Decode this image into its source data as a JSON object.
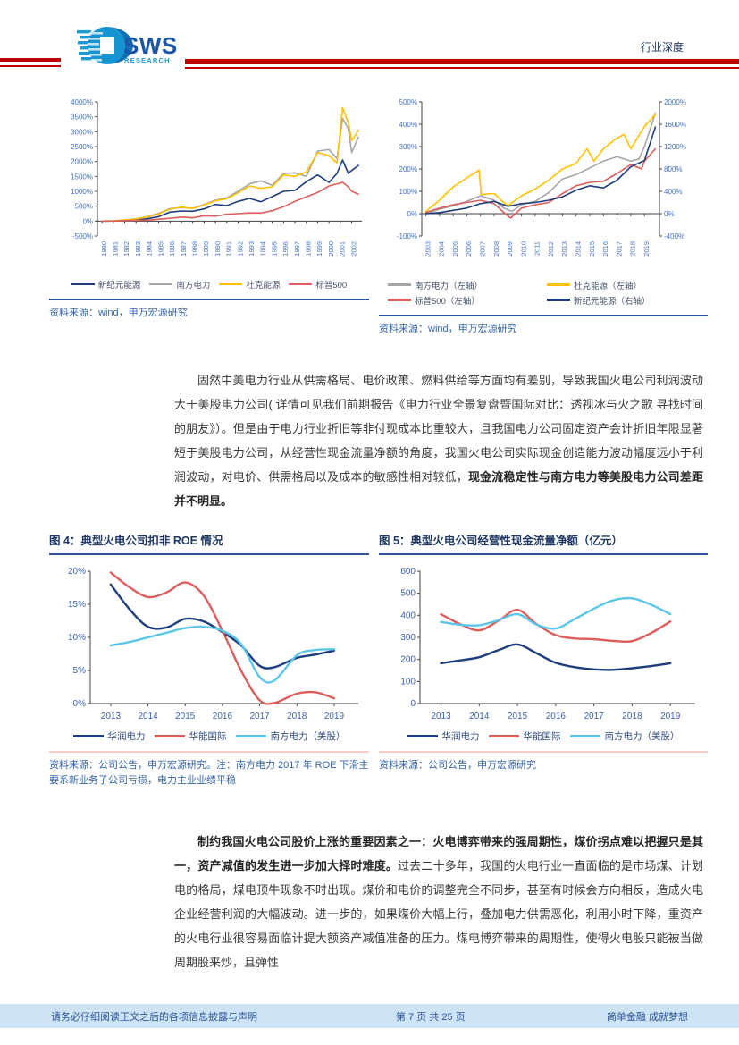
{
  "header": {
    "brand": "SWS",
    "brand_sub": "RESEARCH",
    "doc_type": "行业深度"
  },
  "paragraphs": {
    "p1": {
      "segments": [
        {
          "text": "固然中美电力行业从供需格局、电价政策、燃料供给等方面均有差别，导致我国火电公司利润波动大于美股电力公司( 详情可见我们前期报告《电力行业全景复盘暨国际对比：透视冰与火之歌 寻找时间的朋友》）。但是由于电力行业折旧等非付现成本比重较大，且我国电力公司固定资产会计折旧年限显著短于美股电力公司，从经营性现金流量净额的角度，我国火电公司实际现金创造能力波动幅度远小于利润波动，对电价、供需格局以及成本的敏感性相对较低，",
          "bold": false
        },
        {
          "text": "现金流稳定性与南方电力等美股电力公司差距并不明显。",
          "bold": true
        }
      ]
    },
    "p2": {
      "segments": [
        {
          "text": "制约我国火电公司股价上涨的重要因素之一：火电博弈带来的强周期性，煤价拐点难以把握只是其一，资产减值的发生进一步加大择时难度。",
          "bold": true
        },
        {
          "text": "过去二十多年，我国的火电行业一直面临的是市场煤、计划电的格局，煤电顶牛现象不时出现。煤价和电价的调整完全不同步，甚至有时候会方向相反，造成火电企业经营利润的大幅波动。进一步的，如果煤价大幅上行，叠加电力供需恶化，利用小时下降，重资产的火电行业很容易面临计提大额资产减值准备的压力。煤电博弈带来的周期性，使得火电股只能被当做周期股来炒，且弹性",
          "bold": false
        }
      ]
    }
  },
  "footer": {
    "disclaimer": "请务必仔细阅读正文之后的各项信息披露与声明",
    "page_info": "第 7 页 共 25 页",
    "slogan": "简单金融 成就梦想"
  },
  "colors": {
    "navy": "#1F3D7C",
    "gray": "#A5A5A5",
    "gold": "#FFC000",
    "red": "#DC5E5C",
    "cyan": "#5BC6E8",
    "accent_red": "#C00000",
    "title_blue": "#1F3864",
    "source_blue": "#3465A8",
    "footer_bg": "#CDE4F7"
  },
  "chart_data": [
    {
      "id": "us-power-return-1980-2002",
      "type": "line",
      "title": "",
      "source": "资料来源：wind，申万宏源研究",
      "tick_color": "#4472C4",
      "x_range": [
        1979.6,
        2002.9
      ],
      "x_axis_at": 0,
      "x_ticks": [
        1980,
        1981,
        1982,
        1983,
        1984,
        1985,
        1986,
        1987,
        1988,
        1989,
        1990,
        1991,
        1992,
        1993,
        1994,
        1995,
        1996,
        1997,
        1998,
        1999,
        2000,
        2001,
        2002
      ],
      "y_left": {
        "range": [
          -500,
          4000
        ],
        "ticks": [
          {
            "v": 4000,
            "label": "4000%"
          },
          {
            "v": 3500,
            "label": "3500%"
          },
          {
            "v": 3000,
            "label": "3000%"
          },
          {
            "v": 2500,
            "label": "2500%"
          },
          {
            "v": 2000,
            "label": "2000%"
          },
          {
            "v": 1500,
            "label": "1500%"
          },
          {
            "v": 1000,
            "label": "1000%"
          },
          {
            "v": 500,
            "label": "500%"
          },
          {
            "v": 0,
            "label": "0%"
          },
          {
            "v": -500,
            "label": "-500%"
          }
        ]
      },
      "series": [
        {
          "name": "新纪元能源",
          "color": "#1F3D7C",
          "axis": "left",
          "x": [
            1980,
            1981,
            1982,
            1983,
            1984,
            1985,
            1986,
            1987,
            1988,
            1989,
            1990,
            1991,
            1992,
            1993,
            1994,
            1995,
            1996,
            1997,
            1998,
            1999,
            2000,
            2000.7,
            2001.2,
            2001.7,
            2002,
            2002.6
          ],
          "y": [
            0,
            5,
            20,
            40,
            80,
            150,
            300,
            340,
            330,
            410,
            560,
            520,
            660,
            760,
            650,
            820,
            1000,
            1030,
            1320,
            1550,
            1300,
            1600,
            2050,
            1600,
            1700,
            1870
          ]
        },
        {
          "name": "南方电力",
          "color": "#A5A5A5",
          "axis": "left",
          "x": [
            1980,
            1981,
            1982,
            1983,
            1984,
            1985,
            1986,
            1987,
            1988,
            1989,
            1990,
            1991,
            1992,
            1993,
            1994,
            1995,
            1996,
            1997,
            1998,
            1999,
            2000,
            2000.7,
            2001.2,
            2001.7,
            2002,
            2002.6
          ],
          "y": [
            0,
            10,
            40,
            80,
            150,
            260,
            420,
            450,
            430,
            560,
            700,
            780,
            1000,
            1250,
            1350,
            1200,
            1600,
            1620,
            1500,
            2350,
            2400,
            2100,
            3450,
            3100,
            2300,
            2820
          ]
        },
        {
          "name": "杜克能源",
          "color": "#FFC000",
          "axis": "left",
          "x": [
            1980,
            1981,
            1982,
            1983,
            1984,
            1985,
            1986,
            1987,
            1988,
            1989,
            1990,
            1991,
            1992,
            1993,
            1994,
            1995,
            1996,
            1997,
            1998,
            1999,
            2000,
            2000.7,
            2001.2,
            2001.7,
            2002,
            2002.6
          ],
          "y": [
            0,
            8,
            35,
            70,
            140,
            240,
            400,
            470,
            420,
            540,
            680,
            750,
            950,
            1180,
            1100,
            1150,
            1550,
            1500,
            1650,
            2300,
            2200,
            1950,
            3800,
            3300,
            2700,
            3050
          ]
        },
        {
          "name": "标普500",
          "color": "#DC5E5C",
          "axis": "left",
          "x": [
            1980,
            1981,
            1982,
            1983,
            1984,
            1985,
            1986,
            1987,
            1988,
            1989,
            1990,
            1991,
            1992,
            1993,
            1994,
            1995,
            1996,
            1997,
            1998,
            1999,
            2000,
            2000.7,
            2001.2,
            2001.7,
            2002,
            2002.6
          ],
          "y": [
            0,
            0,
            15,
            25,
            30,
            65,
            95,
            135,
            110,
            180,
            170,
            230,
            250,
            275,
            270,
            350,
            480,
            660,
            810,
            960,
            1180,
            1250,
            1300,
            1150,
            1000,
            900
          ]
        }
      ]
    },
    {
      "id": "us-power-return-2003-2019",
      "type": "line",
      "title": "",
      "source": "资料来源：wind，申万宏源研究",
      "tick_color": "#4472C4",
      "x_range": [
        2002.7,
        2020.1
      ],
      "x_axis_at": 0,
      "x_ticks": [
        2003,
        2004,
        2005,
        2006,
        2007,
        2008,
        2009,
        2010,
        2011,
        2012,
        2013,
        2014,
        2015,
        2016,
        2017,
        2018,
        2019
      ],
      "y_left": {
        "range": [
          -100,
          500
        ],
        "ticks": [
          {
            "v": 500,
            "label": "500%"
          },
          {
            "v": 400,
            "label": "400%"
          },
          {
            "v": 300,
            "label": "300%"
          },
          {
            "v": 200,
            "label": "200%"
          },
          {
            "v": 100,
            "label": "100%"
          },
          {
            "v": 0,
            "label": "0%"
          },
          {
            "v": -100,
            "label": "-100%"
          }
        ]
      },
      "y_right": {
        "range": [
          -400,
          2000
        ],
        "ticks": [
          {
            "v": 2000,
            "label": "2000%"
          },
          {
            "v": 1600,
            "label": "1600%"
          },
          {
            "v": 1200,
            "label": "1200%"
          },
          {
            "v": 800,
            "label": "800%"
          },
          {
            "v": 400,
            "label": "400%"
          },
          {
            "v": 0,
            "label": "0%"
          },
          {
            "v": -400,
            "label": "-400%"
          }
        ]
      },
      "series": [
        {
          "name": "南方电力（左轴）",
          "color": "#A5A5A5",
          "axis": "left",
          "x": [
            2003,
            2004,
            2005,
            2006,
            2007,
            2008,
            2008.7,
            2009.3,
            2010,
            2011,
            2012,
            2013,
            2014,
            2015,
            2016,
            2017,
            2018,
            2018.6,
            2019,
            2019.8
          ],
          "y": [
            0,
            20,
            35,
            55,
            80,
            60,
            25,
            10,
            40,
            55,
            95,
            155,
            175,
            205,
            235,
            255,
            235,
            245,
            300,
            450
          ]
        },
        {
          "name": "杜克能源（左轴）",
          "color": "#FFC000",
          "axis": "left",
          "x": [
            2003,
            2004,
            2005,
            2006,
            2006.9,
            2007.05,
            2007.5,
            2008,
            2008.6,
            2009,
            2010,
            2011,
            2012,
            2013,
            2014,
            2014.8,
            2015.3,
            2016,
            2016.8,
            2017.5,
            2018,
            2018.4,
            2019,
            2019.8
          ],
          "y": [
            10,
            60,
            120,
            160,
            195,
            85,
            88,
            90,
            55,
            35,
            80,
            110,
            150,
            200,
            225,
            290,
            235,
            290,
            330,
            355,
            290,
            330,
            390,
            445
          ]
        },
        {
          "name": "标普500（左轴）",
          "color": "#DC5E5C",
          "axis": "left",
          "x": [
            2003,
            2004,
            2005,
            2006,
            2007,
            2008,
            2008.8,
            2009.2,
            2010,
            2011,
            2012,
            2013,
            2014,
            2015,
            2016,
            2017,
            2018,
            2018.8,
            2019,
            2019.8
          ],
          "y": [
            5,
            25,
            40,
            50,
            60,
            45,
            0,
            -20,
            25,
            40,
            50,
            90,
            125,
            140,
            145,
            180,
            220,
            200,
            235,
            290
          ]
        },
        {
          "name": "新纪元能源（右轴）",
          "color": "#1F3D7C",
          "axis": "right",
          "x": [
            2003,
            2004,
            2005,
            2006,
            2007,
            2008,
            2009,
            2010,
            2011,
            2012,
            2013,
            2014,
            2015,
            2016,
            2017,
            2018,
            2019,
            2019.8
          ],
          "y": [
            0,
            20,
            60,
            100,
            180,
            220,
            130,
            180,
            200,
            240,
            300,
            420,
            500,
            460,
            600,
            840,
            950,
            1550
          ]
        }
      ]
    },
    {
      "id": "fig4-roe",
      "type": "line",
      "title": "图 4：典型火电公司扣非 ROE 情况",
      "source": "资料来源：公司公告，申万宏源研究。注：南方电力 2017 年 ROE 下滑主要系新业务子公司亏损，电力主业业绩平稳",
      "tick_color": "#3A62AE",
      "x_range": [
        2012.45,
        2019.65
      ],
      "x_axis_at": 0,
      "x_ticks": [
        2013,
        2014,
        2015,
        2016,
        2017,
        2018,
        2019
      ],
      "y_left": {
        "range": [
          0,
          20
        ],
        "ticks": [
          {
            "v": 20,
            "label": "20%"
          },
          {
            "v": 15,
            "label": "15%"
          },
          {
            "v": 10,
            "label": "10%"
          },
          {
            "v": 5,
            "label": "5%"
          },
          {
            "v": 0,
            "label": "0%"
          }
        ]
      },
      "series": [
        {
          "name": "华润电力",
          "color": "#1F3D7C",
          "axis": "left",
          "x": [
            2013,
            2013.5,
            2014,
            2014.5,
            2015,
            2015.5,
            2016,
            2016.5,
            2017,
            2017.4,
            2018,
            2018.5,
            2019
          ],
          "y": [
            18,
            14.3,
            11.6,
            11.5,
            12.8,
            12.4,
            10.8,
            8.8,
            5.7,
            5.5,
            6.9,
            7.4,
            8
          ]
        },
        {
          "name": "华能国际",
          "color": "#DC5E5C",
          "axis": "left",
          "x": [
            2013,
            2013.5,
            2014,
            2014.5,
            2015,
            2015.5,
            2016,
            2016.5,
            2017,
            2017.4,
            2018,
            2018.5,
            2019
          ],
          "y": [
            19.8,
            17.6,
            16.1,
            16.8,
            18.3,
            16.3,
            11,
            5,
            0.5,
            0.1,
            1.5,
            1.7,
            0.8
          ]
        },
        {
          "name": "南方电力（美股）",
          "color": "#5BC6E8",
          "axis": "left",
          "x": [
            2013,
            2013.5,
            2014,
            2014.5,
            2015,
            2015.5,
            2016,
            2016.5,
            2017,
            2017.4,
            2018,
            2018.5,
            2019
          ],
          "y": [
            8.8,
            9.3,
            10,
            10.7,
            11.4,
            11.6,
            11,
            9,
            4,
            3.5,
            7.3,
            8.1,
            8.2
          ]
        }
      ]
    },
    {
      "id": "fig5-ocf",
      "type": "line",
      "title": "图 5：典型火电公司经营性现金流量净额（亿元）",
      "source": "资料来源：公司公告，申万宏源研究",
      "tick_color": "#3A62AE",
      "x_range": [
        2012.45,
        2019.65
      ],
      "x_axis_at": 0,
      "x_ticks": [
        2013,
        2014,
        2015,
        2016,
        2017,
        2018,
        2019
      ],
      "y_left": {
        "range": [
          0,
          600
        ],
        "ticks": [
          {
            "v": 600,
            "label": "600"
          },
          {
            "v": 500,
            "label": "500"
          },
          {
            "v": 400,
            "label": "400"
          },
          {
            "v": 300,
            "label": "300"
          },
          {
            "v": 200,
            "label": "200"
          },
          {
            "v": 100,
            "label": "100"
          },
          {
            "v": 0,
            "label": "0"
          }
        ]
      },
      "series": [
        {
          "name": "华润电力",
          "color": "#1F3D7C",
          "axis": "left",
          "x": [
            2013,
            2013.5,
            2014,
            2014.5,
            2015,
            2015.5,
            2016,
            2016.5,
            2017,
            2017.5,
            2018,
            2018.5,
            2019
          ],
          "y": [
            183,
            196,
            210,
            242,
            268,
            228,
            185,
            165,
            155,
            153,
            160,
            170,
            183
          ]
        },
        {
          "name": "华能国际",
          "color": "#DC5E5C",
          "axis": "left",
          "x": [
            2013,
            2013.5,
            2014,
            2014.5,
            2015,
            2015.5,
            2016,
            2016.5,
            2017,
            2017.5,
            2018,
            2018.5,
            2019
          ],
          "y": [
            405,
            360,
            332,
            375,
            425,
            360,
            310,
            295,
            292,
            284,
            283,
            320,
            372
          ]
        },
        {
          "name": "南方电力（美股）",
          "color": "#5BC6E8",
          "axis": "left",
          "x": [
            2013,
            2013.5,
            2014,
            2014.5,
            2015,
            2015.5,
            2016,
            2016.5,
            2017,
            2017.5,
            2018,
            2018.5,
            2019
          ],
          "y": [
            370,
            357,
            355,
            378,
            405,
            358,
            340,
            383,
            430,
            468,
            477,
            448,
            405
          ]
        }
      ]
    }
  ]
}
